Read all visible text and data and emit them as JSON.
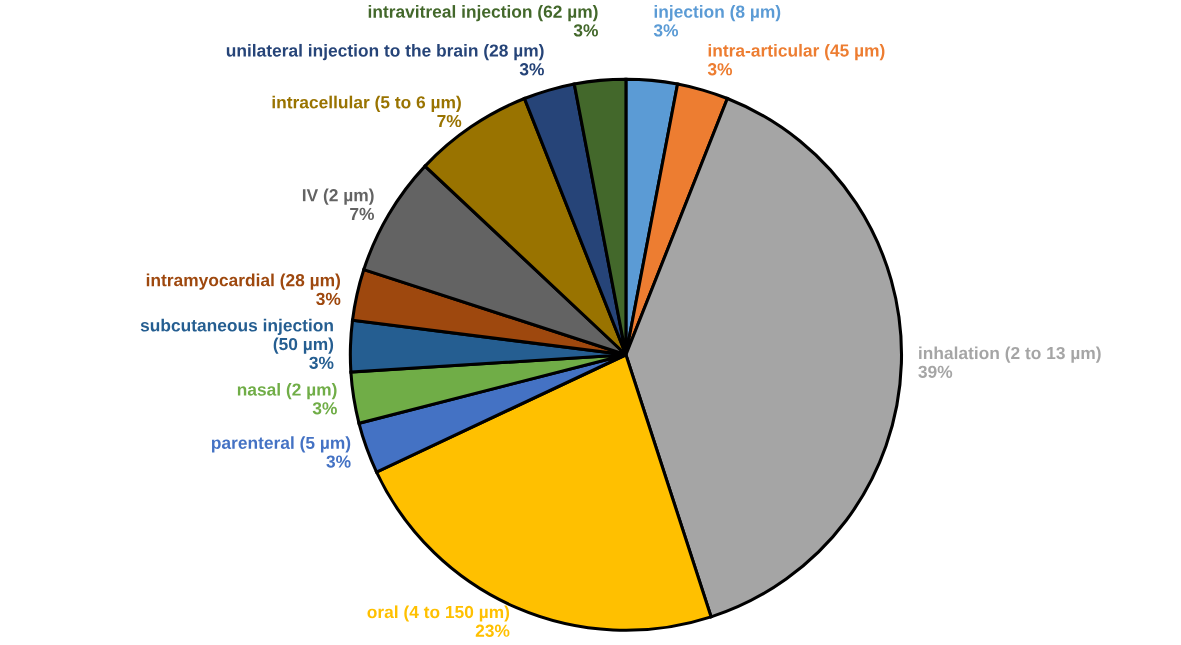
{
  "chart_data": {
    "type": "pie",
    "categories": [
      "injection (8 µm)",
      "intra-articular (45 µm)",
      "inhalation (2 to 13 µm)",
      "oral (4 to 150 µm)",
      "parenteral (5 µm)",
      "nasal (2 µm)",
      "subcutaneous injection\n(50 µm)",
      "intramyocardial (28 µm)",
      "IV (2 µm)",
      "intracellular (5 to 6 µm)",
      "unilateral injection to the brain (28 µm)",
      "intravitreal injection (62 µm)"
    ],
    "values": [
      3,
      3,
      39,
      23,
      3,
      3,
      3,
      3,
      7,
      7,
      3,
      3
    ],
    "value_labels": [
      "3%",
      "3%",
      "39%",
      "23%",
      "3%",
      "3%",
      "3%",
      "3%",
      "7%",
      "7%",
      "3%",
      "3%"
    ],
    "colors": [
      "#5b9bd5",
      "#ed7d31",
      "#a5a5a5",
      "#ffc000",
      "#4472c4",
      "#70ad47",
      "#255e91",
      "#9e480e",
      "#636363",
      "#997300",
      "#264478",
      "#43682b"
    ],
    "legend": false
  }
}
